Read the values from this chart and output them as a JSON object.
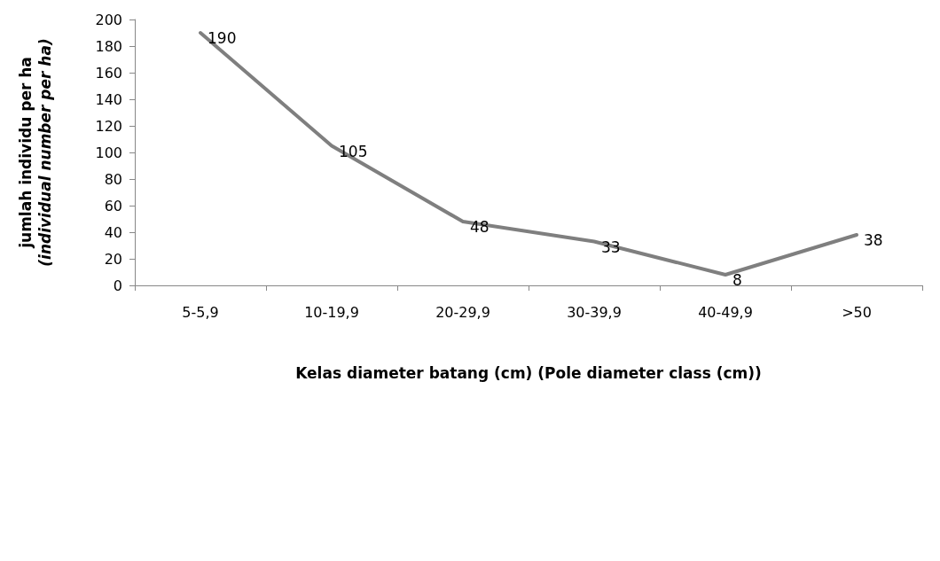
{
  "chart_data": {
    "type": "line",
    "xlabel": "Kelas diameter batang (cm) (Pole diameter class (cm))",
    "ylabel": "jumlah individu per ha\n(individual number per ha)",
    "categories": [
      "5-5,9",
      "10-19,9",
      "20-29,9",
      "30-39,9",
      "40-49,9",
      ">50"
    ],
    "series": [
      {
        "color": "#7f7f7f",
        "values": [
          190,
          105,
          48,
          33,
          8,
          38
        ]
      }
    ],
    "ylim": [
      0,
      200
    ],
    "yticks": [
      0,
      20,
      40,
      60,
      80,
      100,
      120,
      140,
      160,
      180,
      200
    ],
    "grid": false,
    "marker": "none",
    "line_style": "solid",
    "data_labels": true
  }
}
